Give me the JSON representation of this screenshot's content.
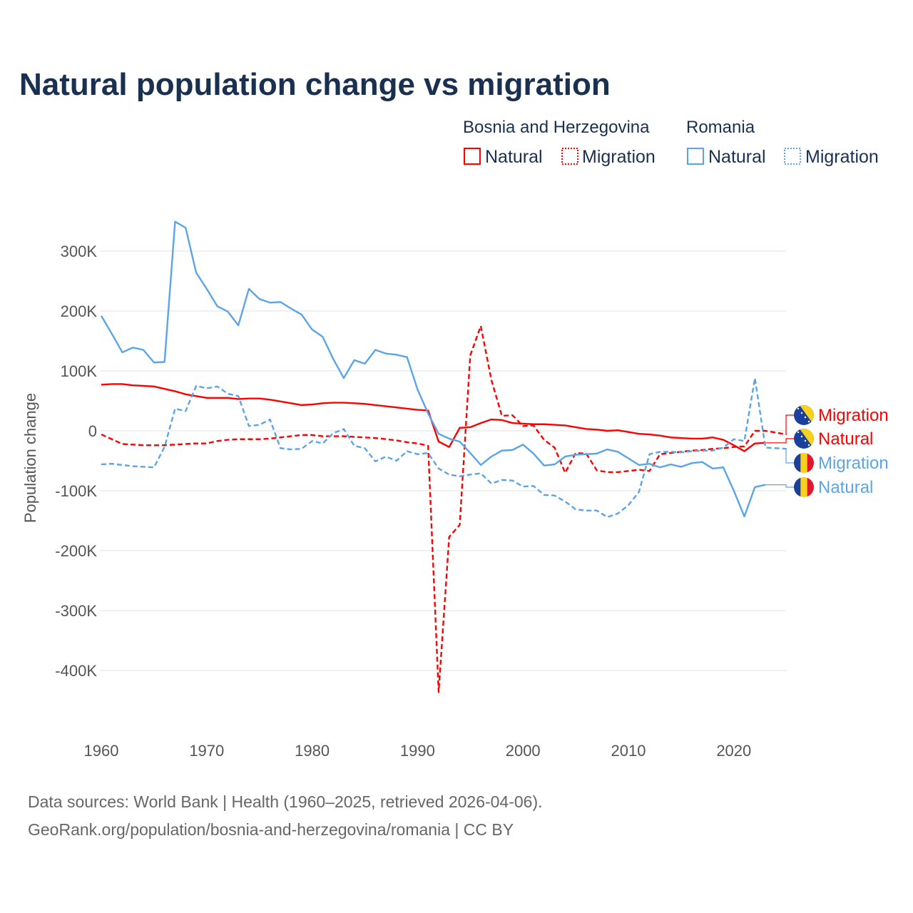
{
  "title": "Natural population change vs migration",
  "legend": {
    "groups": [
      {
        "name": "Bosnia and Herzegovina",
        "items": [
          {
            "label": "Natural",
            "style": "solid"
          },
          {
            "label": "Migration",
            "style": "dotted"
          }
        ],
        "color": "#ff0000"
      },
      {
        "name": "Romania",
        "items": [
          {
            "label": "Natural",
            "style": "solid"
          },
          {
            "label": "Migration",
            "style": "dotted"
          }
        ],
        "color": "#5ba4e8"
      }
    ]
  },
  "footer": {
    "line1": "Data sources: World Bank | Health (1960–2025, retrieved 2026-04-06).",
    "line2": "GeoRank.org/population/bosnia-and-herzegovina/romania | CC BY"
  },
  "chart_data": {
    "type": "line",
    "title": "Natural population change vs migration",
    "xlabel": "",
    "ylabel": "Population change",
    "xlim": [
      1960,
      2025
    ],
    "ylim": [
      -500000,
      350000
    ],
    "yticks": [
      300000,
      200000,
      100000,
      0,
      -100000,
      -200000,
      -300000,
      -400000
    ],
    "ytick_labels": [
      "300K",
      "200K",
      "100K",
      "0",
      "-100K",
      "-200K",
      "-300K",
      "-400K"
    ],
    "xticks": [
      1960,
      1970,
      1980,
      1990,
      2000,
      2010,
      2020
    ],
    "xtick_labels": [
      "1960",
      "1970",
      "1980",
      "1990",
      "2000",
      "2010",
      "2020"
    ],
    "grid": true,
    "legend_position": "top-right",
    "series": [
      {
        "name": "Bosnia and Herzegovina Migration",
        "end_label": "Migration",
        "country": "BiH",
        "color": "#ff0000",
        "dash": true,
        "start": 1960,
        "values": [
          -6,
          -14,
          -22,
          -23,
          -24,
          -24,
          -24,
          -23,
          -22,
          -21,
          -21,
          -17,
          -15,
          -14,
          -14,
          -14,
          -13,
          -11,
          -9,
          -7,
          -7,
          -9,
          -9,
          -9,
          -10,
          -11,
          -12,
          -14,
          -16,
          -19,
          -21,
          -25,
          -436,
          -177,
          -157,
          126,
          175,
          85,
          25,
          26,
          8,
          9,
          -15,
          -28,
          -70,
          -37,
          -38,
          -66,
          -69,
          -69,
          -67,
          -65,
          -67,
          -39,
          -37,
          -35,
          -33,
          -32,
          -30,
          -29,
          -27,
          -26,
          0,
          0,
          -3,
          -6
        ]
      },
      {
        "name": "Bosnia and Herzegovina Natural",
        "end_label": "Natural",
        "country": "BiH",
        "color": "#ff0000",
        "dash": false,
        "start": 1960,
        "values": [
          77,
          78,
          78,
          76,
          75,
          74,
          70,
          66,
          61,
          58,
          55,
          55,
          55,
          53,
          54,
          54,
          52,
          49,
          46,
          43,
          44,
          46,
          47,
          47,
          46,
          45,
          43,
          41,
          39,
          37,
          35,
          34,
          -18,
          -27,
          5,
          6,
          13,
          19,
          18,
          13,
          12,
          11,
          11,
          10,
          9,
          6,
          3,
          2,
          0,
          1,
          -2,
          -5,
          -6,
          -8,
          -11,
          -12,
          -13,
          -13,
          -11,
          -15,
          -24,
          -34,
          -21,
          -20
        ]
      },
      {
        "name": "Romania Migration",
        "end_label": "Migration",
        "country": "RO",
        "color": "#5ba4e8",
        "dash": true,
        "start": 1960,
        "values": [
          -56,
          -55,
          -57,
          -59,
          -60,
          -61,
          -27,
          37,
          33,
          75,
          71,
          74,
          62,
          58,
          8,
          10,
          19,
          -29,
          -31,
          -30,
          -17,
          -21,
          -4,
          3,
          -25,
          -29,
          -51,
          -43,
          -50,
          -34,
          -39,
          -37,
          -63,
          -73,
          -76,
          -73,
          -71,
          -88,
          -82,
          -83,
          -93,
          -92,
          -107,
          -108,
          -118,
          -131,
          -133,
          -133,
          -144,
          -138,
          -124,
          -102,
          -39,
          -35,
          -35,
          -36,
          -34,
          -33,
          -33,
          -28,
          -14,
          -17,
          88,
          -28,
          -29,
          -30
        ]
      },
      {
        "name": "Romania Natural",
        "end_label": "Natural",
        "country": "RO",
        "color": "#5ba4e8",
        "dash": false,
        "start": 1960,
        "values": [
          192,
          162,
          131,
          139,
          135,
          114,
          115,
          349,
          339,
          264,
          237,
          208,
          199,
          176,
          237,
          220,
          214,
          215,
          204,
          194,
          169,
          157,
          120,
          88,
          118,
          112,
          135,
          129,
          127,
          123,
          69,
          29,
          -5,
          -13,
          -18,
          -37,
          -57,
          -43,
          -33,
          -32,
          -23,
          -38,
          -58,
          -56,
          -43,
          -40,
          -39,
          -38,
          -31,
          -35,
          -46,
          -57,
          -55,
          -61,
          -56,
          -60,
          -54,
          -52,
          -63,
          -61,
          -100,
          -143,
          -94,
          -90
        ]
      }
    ],
    "units": "thousands"
  }
}
